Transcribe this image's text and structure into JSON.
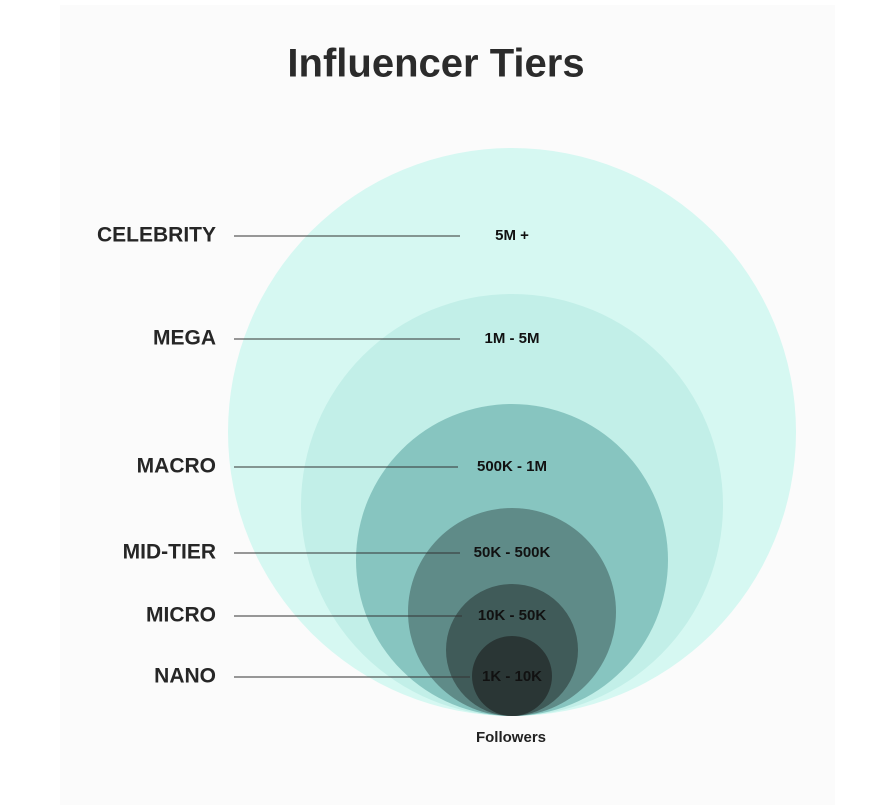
{
  "title": "Influencer Tiers",
  "tiers": [
    {
      "label": "CELEBRITY",
      "range": "5M +"
    },
    {
      "label": "MEGA",
      "range": "1M - 5M"
    },
    {
      "label": "MACRO",
      "range": "500K - 1M"
    },
    {
      "label": "MID-TIER",
      "range": "50K - 500K"
    },
    {
      "label": "MICRO",
      "range": "10K - 50K"
    },
    {
      "label": "NANO",
      "range": "1K - 10K"
    }
  ],
  "footer": "Followers"
}
